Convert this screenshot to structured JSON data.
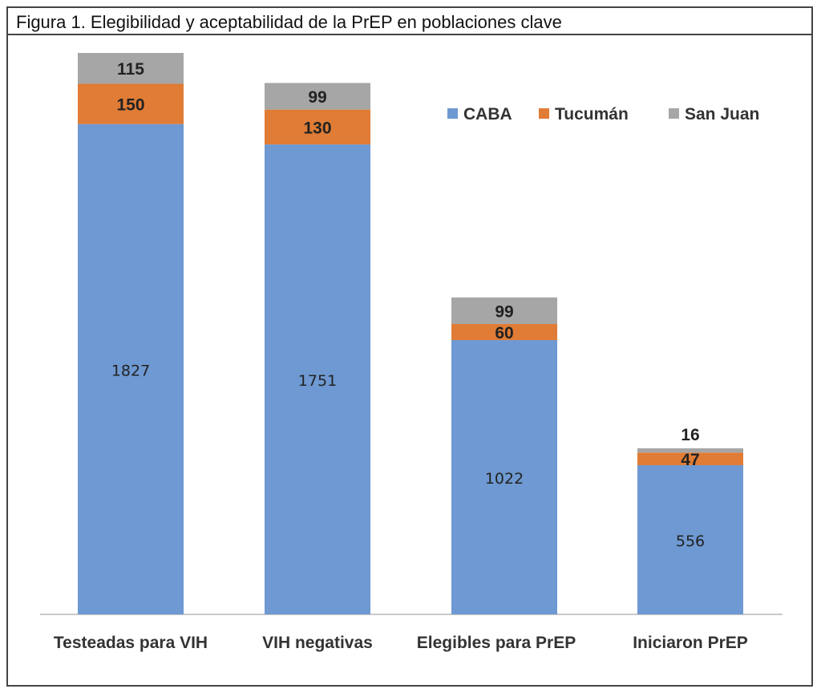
{
  "chart_data": {
    "type": "bar",
    "stacked": true,
    "title": "Figura 1. Elegibilidad y aceptabilidad de la PrEP en poblaciones clave",
    "categories": [
      "Testeadas para VIH",
      "VIH negativas",
      "Elegibles para PrEP",
      "Iniciaron PrEP"
    ],
    "series": [
      {
        "name": "CABA",
        "values": [
          1827,
          1751,
          1022,
          556
        ],
        "color": "#6e99d2"
      },
      {
        "name": "Tucumán",
        "values": [
          150,
          130,
          60,
          47
        ],
        "color": "#e07c36"
      },
      {
        "name": "San Juan",
        "values": [
          115,
          99,
          99,
          16
        ],
        "color": "#a6a6a6"
      }
    ],
    "legend_position": "top-right",
    "grid": false,
    "ylim": [
      0,
      2100
    ]
  }
}
